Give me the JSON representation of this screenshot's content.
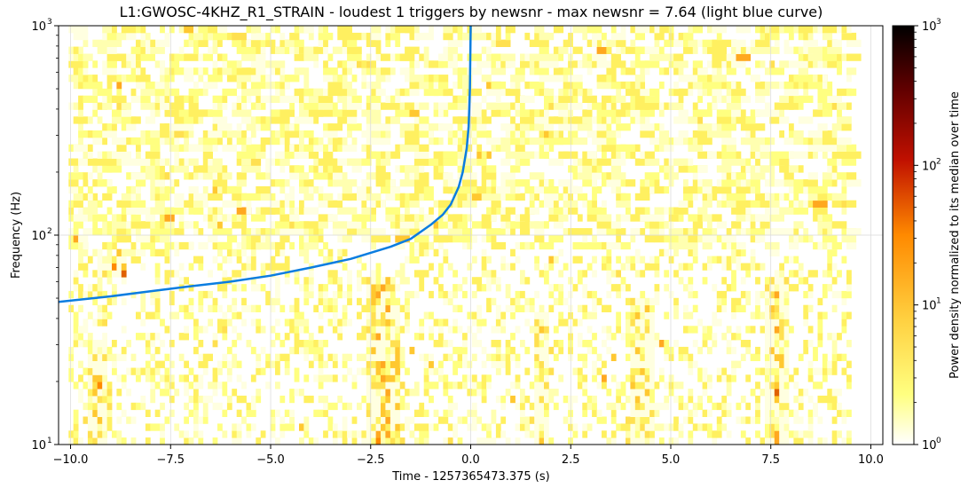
{
  "chart_data": {
    "type": "heatmap",
    "title": "L1:GWOSC-4KHZ_R1_STRAIN - loudest 1 triggers by newsnr - max newsnr = 7.64 (light blue curve)",
    "xlabel": "Time - 1257365473.375 (s)",
    "ylabel": "Frequency (Hz)",
    "xlim": [
      -10.3,
      10.3
    ],
    "ylim": [
      10,
      1000
    ],
    "yscale": "log",
    "grid": true,
    "x_ticks": [
      {
        "value": -10.0,
        "label": "−10.0"
      },
      {
        "value": -7.5,
        "label": "−7.5"
      },
      {
        "value": -5.0,
        "label": "−5.0"
      },
      {
        "value": -2.5,
        "label": "−2.5"
      },
      {
        "value": 0.0,
        "label": "0.0"
      },
      {
        "value": 2.5,
        "label": "2.5"
      },
      {
        "value": 5.0,
        "label": "5.0"
      },
      {
        "value": 7.5,
        "label": "7.5"
      },
      {
        "value": 10.0,
        "label": "10.0"
      }
    ],
    "y_ticks": [
      {
        "value": 10,
        "label": "10",
        "exp": "1"
      },
      {
        "value": 100,
        "label": "10",
        "exp": "2"
      },
      {
        "value": 1000,
        "label": "10",
        "exp": "3"
      }
    ],
    "heatmap_extent": {
      "x": [
        -10.05,
        9.4
      ],
      "y": [
        10,
        1000
      ]
    },
    "hot_spots": [
      {
        "t": -2.3,
        "f_min": 10,
        "f_max": 60,
        "level": 6
      },
      {
        "t": -2.1,
        "f_min": 10,
        "f_max": 45,
        "level": 5
      },
      {
        "t": 4.2,
        "f_min": 10,
        "f_max": 50,
        "level": 4
      },
      {
        "t": 7.6,
        "f_min": 10,
        "f_max": 60,
        "level": 5
      },
      {
        "t": 1.7,
        "f_min": 10,
        "f_max": 40,
        "level": 3
      },
      {
        "t": -9.4,
        "f_min": 10,
        "f_max": 30,
        "level": 3
      },
      {
        "t": -9.0,
        "f_min": 60,
        "f_max": 75,
        "level": 8
      }
    ],
    "series": [
      {
        "color": "#0b7de0",
        "x": [
          -10.3,
          -9.0,
          -8.0,
          -7.0,
          -6.0,
          -5.0,
          -4.0,
          -3.0,
          -2.0,
          -1.5,
          -1.0,
          -0.7,
          -0.5,
          -0.3,
          -0.2,
          -0.1,
          -0.05,
          -0.02,
          0.0
        ],
        "y": [
          48,
          51,
          54,
          57,
          60,
          64,
          70,
          77,
          88,
          96,
          112,
          125,
          140,
          170,
          200,
          260,
          330,
          500,
          1000
        ]
      }
    ],
    "colorbar": {
      "label": "Power density normalized to its median over time",
      "scale": "log",
      "range": [
        1,
        1000
      ],
      "ticks": [
        {
          "value": 1,
          "label": "10",
          "exp": "0"
        },
        {
          "value": 10,
          "label": "10",
          "exp": "1"
        },
        {
          "value": 100,
          "label": "10",
          "exp": "2"
        },
        {
          "value": 1000,
          "label": "10",
          "exp": "3"
        }
      ],
      "colors": [
        "#ffffff",
        "#ffff80",
        "#ffd040",
        "#ff8a00",
        "#c01000",
        "#600000",
        "#000000"
      ]
    }
  }
}
